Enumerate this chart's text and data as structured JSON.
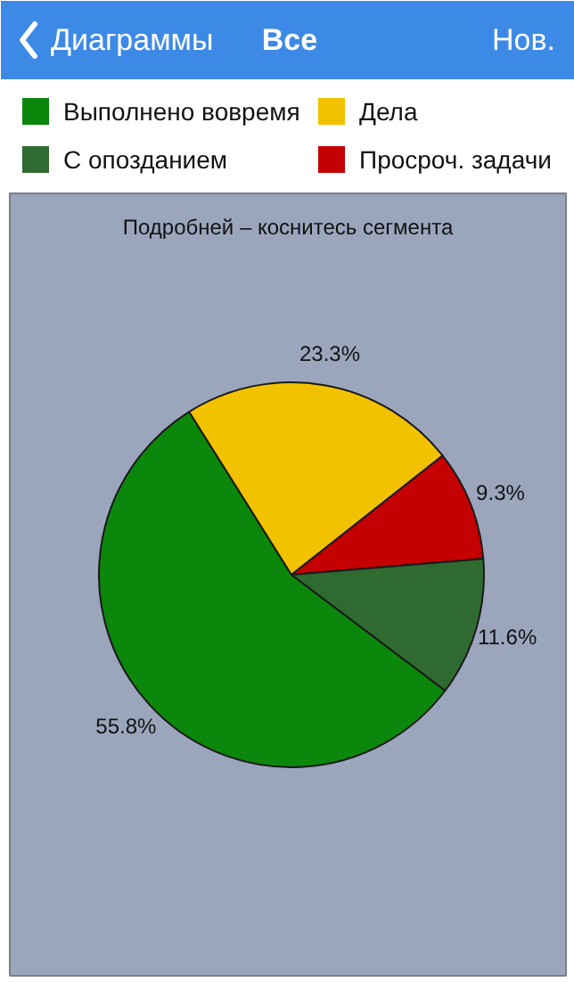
{
  "chart_data": {
    "type": "pie",
    "title": "Подробней – коснитесь сегмента",
    "annotations": [
      "Диаграммы",
      "Все",
      "Нов."
    ],
    "categories": [
      "Выполнено вовремя",
      "Дела",
      "Просроч. задачи",
      "С опозданием"
    ],
    "values": [
      55.8,
      23.3,
      9.3,
      11.6
    ],
    "colors": [
      "#0b870b",
      "#f2c200",
      "#c40000",
      "#2f6a30"
    ],
    "value_labels": [
      "55.8%",
      "23.3%",
      "9.3%",
      "11.6%"
    ],
    "legend": "top"
  }
}
